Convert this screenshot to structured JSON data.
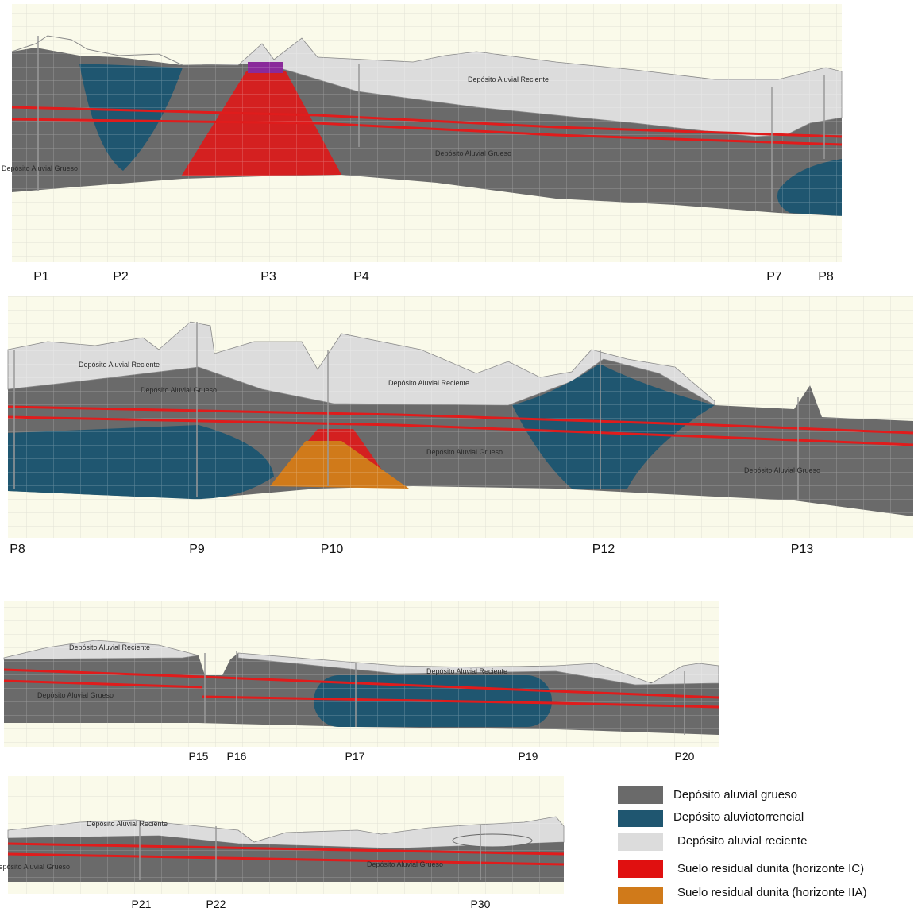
{
  "sections": [
    {
      "wells": [
        "P1",
        "P2",
        "P3",
        "P4",
        "P7",
        "P8"
      ],
      "labels": [
        "Depósito Aluvial Reciente",
        "Depósito Aluvial Grueso",
        "Depósito Aluvial Grueso"
      ]
    },
    {
      "wells": [
        "P8",
        "P9",
        "P10",
        "P12",
        "P13"
      ],
      "labels": [
        "Depósito Aluvial Reciente",
        "Depósito Aluvial Reciente",
        "Depósito Aluvial Grueso",
        "Depósito Aluvial Grueso",
        "Depósito Aluvial Grueso"
      ]
    },
    {
      "wells": [
        "P15",
        "P16",
        "P17",
        "P19",
        "P20"
      ],
      "labels": [
        "Depósito Aluvial Reciente",
        "Depósito Aluvial Reciente",
        "Depósito Aluvial Grueso"
      ]
    },
    {
      "wells": [
        "P21",
        "P22",
        "P30"
      ],
      "labels": [
        "Depósito Aluvial Reciente",
        "Depósito Aluvial Grueso",
        "Depósito Aluvial Grueso"
      ]
    }
  ],
  "legend": [
    "Depósito aluvial grueso",
    "Depósito aluviotorrencial",
    "Depósito aluvial reciente",
    "Suelo residual dunita (horizonte IC)",
    "Suelo residual dunita (horizonte IIA)"
  ]
}
